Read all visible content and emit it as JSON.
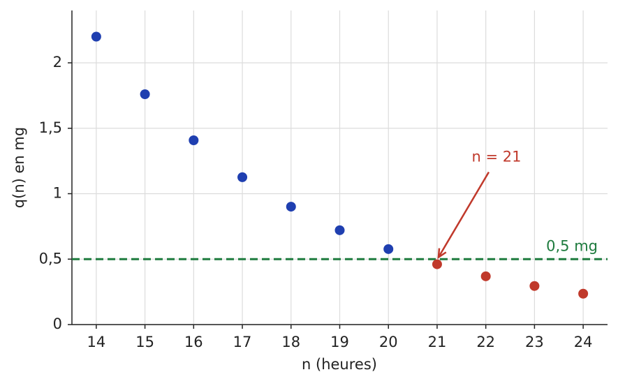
{
  "chart_data": {
    "type": "scatter",
    "xlabel": "n (heures)",
    "ylabel": "q(n) en mg",
    "series": [
      {
        "color": "#1f3fb0",
        "x": [
          14,
          15,
          16,
          17,
          18,
          19,
          20
        ],
        "values": [
          2.2,
          1.76,
          1.408,
          1.126,
          0.901,
          0.721,
          0.577
        ]
      },
      {
        "color": "#c0392b",
        "x": [
          21,
          22,
          23,
          24
        ],
        "values": [
          0.461,
          0.369,
          0.295,
          0.236
        ]
      }
    ],
    "xlim": [
      13.5,
      24.5
    ],
    "xticks": [
      14,
      15,
      16,
      17,
      18,
      19,
      20,
      21,
      22,
      23,
      24
    ],
    "ylim": [
      0,
      2.4
    ],
    "yticks": [
      0,
      {
        "value": 0.5,
        "label": "0,5"
      },
      1,
      {
        "value": 1.5,
        "label": "1,5"
      },
      2
    ],
    "grid": true,
    "threshold": {
      "value": 0.5,
      "label": "0,5 mg",
      "color": "#1e7b3e"
    },
    "annotation": {
      "text": "n = 21",
      "color": "#c0392b"
    }
  }
}
